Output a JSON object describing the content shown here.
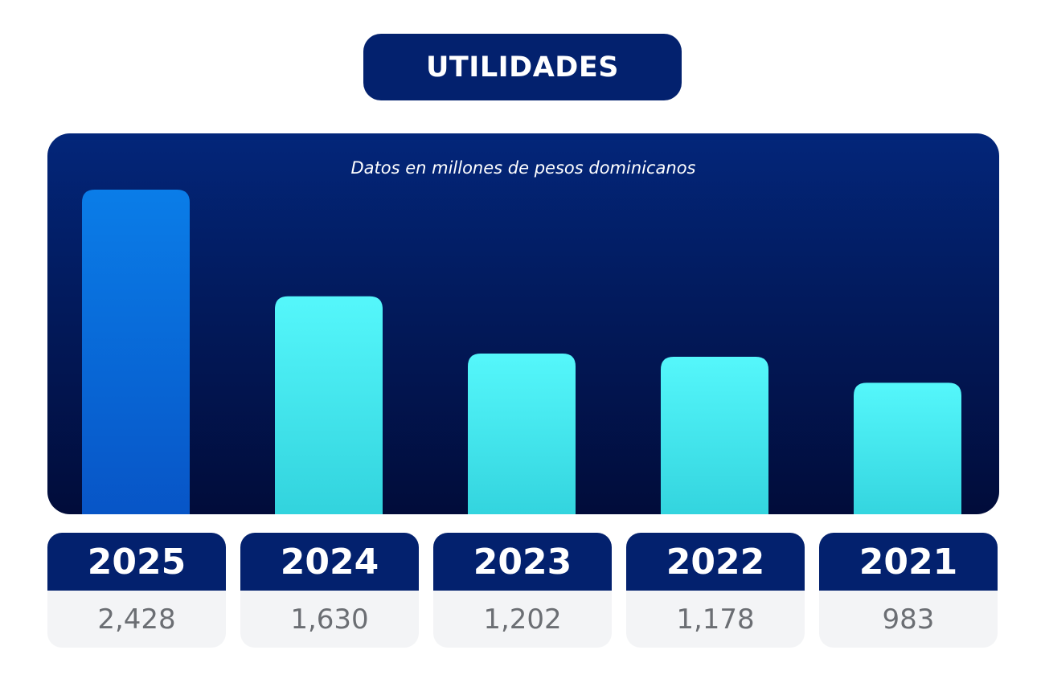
{
  "header": {
    "title": "UTILIDADES"
  },
  "chart_data": {
    "type": "bar",
    "subtitle": "Datos en millones de pesos dominicanos",
    "categories": [
      "2025",
      "2024",
      "2023",
      "2022",
      "2021"
    ],
    "values": [
      2428,
      1630,
      1202,
      1178,
      983
    ],
    "value_labels": [
      "2,428",
      "1,630",
      "1,202",
      "1,178",
      "983"
    ],
    "ylim": [
      0,
      2428
    ],
    "grid": false,
    "legend": "none",
    "colors": {
      "highlight_top": "#0a7de8",
      "highlight_bottom": "#0752c4",
      "bar_top": "#55f7fb",
      "bar_bottom": "#2ecfda"
    }
  },
  "colors": {
    "navy": "#03216e",
    "panel_top": "#03267a",
    "panel_bottom": "#010c3a",
    "value_text": "#6b6e73",
    "card_bg": "#f3f4f6"
  }
}
